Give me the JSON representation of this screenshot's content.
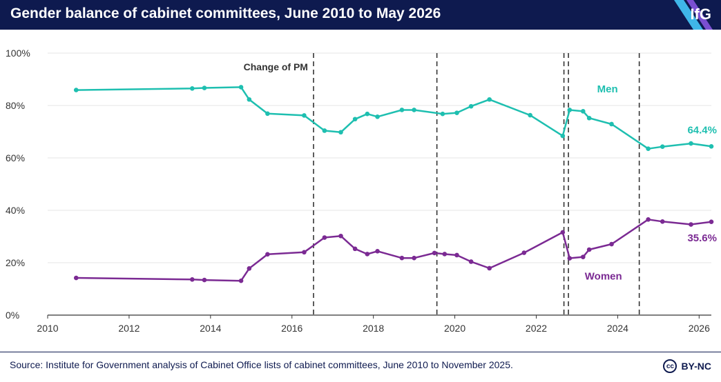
{
  "header": {
    "title": "Gender balance of cabinet committees, June 2010 to May 2026",
    "logo": "IfG"
  },
  "footer": {
    "source": "Source: Institute for Government analysis of Cabinet Office lists of cabinet committees, June 2010 to November 2025.",
    "license": "BY-NC",
    "cc_icon": "cc"
  },
  "colors": {
    "men": "#1ebfb0",
    "women": "#7b2a93",
    "header_bg": "#0e1a4f",
    "pm_line": "#333333",
    "grid": "#e4e4e4"
  },
  "chart_data": {
    "type": "line",
    "title": "Gender balance of cabinet committees, June 2010 to May 2026",
    "xlim": [
      2010,
      2026.3
    ],
    "ylim": [
      0,
      100
    ],
    "x_ticks": [
      2010,
      2012,
      2014,
      2016,
      2018,
      2020,
      2022,
      2024,
      2026
    ],
    "y_ticks": [
      {
        "value": 0,
        "label": "0%"
      },
      {
        "value": 20,
        "label": "20%"
      },
      {
        "value": 40,
        "label": "40%"
      },
      {
        "value": 60,
        "label": "60%"
      },
      {
        "value": 80,
        "label": "80%"
      },
      {
        "value": 100,
        "label": "100%"
      }
    ],
    "grid": true,
    "pm_changes": [
      2016.53,
      2019.56,
      2022.68,
      2022.79,
      2024.53
    ],
    "pm_annotation": "Change of PM",
    "series": [
      {
        "name": "Men",
        "end_label": "64.4%",
        "x": [
          2010.7,
          2013.55,
          2013.85,
          2014.75,
          2014.95,
          2015.4,
          2016.3,
          2016.8,
          2017.2,
          2017.55,
          2017.85,
          2018.1,
          2018.7,
          2019.0,
          2019.7,
          2020.05,
          2020.4,
          2020.85,
          2021.85,
          2022.65,
          2022.82,
          2023.15,
          2023.3,
          2023.85,
          2024.75,
          2025.1,
          2025.8,
          2026.3
        ],
        "y": [
          85.9,
          86.5,
          86.7,
          87.0,
          82.3,
          76.9,
          76.2,
          70.4,
          69.8,
          74.8,
          76.8,
          75.7,
          78.3,
          78.3,
          76.8,
          77.2,
          79.7,
          82.3,
          76.3,
          68.4,
          78.3,
          77.8,
          75.2,
          72.9,
          63.5,
          64.3,
          65.5,
          64.4
        ]
      },
      {
        "name": "Women",
        "end_label": "35.6%",
        "x": [
          2010.7,
          2013.55,
          2013.85,
          2014.75,
          2014.95,
          2015.4,
          2016.3,
          2016.8,
          2017.2,
          2017.55,
          2017.85,
          2018.1,
          2018.7,
          2019.0,
          2019.5,
          2019.75,
          2020.05,
          2020.4,
          2020.85,
          2021.7,
          2022.65,
          2022.82,
          2023.15,
          2023.3,
          2023.85,
          2024.75,
          2025.1,
          2025.8,
          2026.3
        ],
        "y": [
          14.2,
          13.6,
          13.4,
          13.1,
          17.8,
          23.2,
          24.0,
          29.6,
          30.2,
          25.3,
          23.3,
          24.4,
          21.8,
          21.8,
          23.7,
          23.3,
          22.9,
          20.4,
          17.9,
          23.8,
          31.6,
          21.7,
          22.2,
          25.0,
          27.1,
          36.5,
          35.7,
          34.6,
          35.6
        ]
      }
    ]
  }
}
